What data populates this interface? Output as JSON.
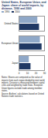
{
  "chart_data": {
    "type": "bar",
    "orientation": "horizontal",
    "title": "United States, European Union, and Japan: share of world imports, by distance, 1990 and 2000",
    "categories": [
      "United States",
      "European Union",
      "Japan"
    ],
    "series": [
      {
        "name": "1990",
        "color": "#8fa8c8",
        "values": [
          22,
          25,
          12
        ]
      },
      {
        "name": "2000",
        "color": "#1f3864",
        "values": [
          24,
          27,
          14
        ]
      }
    ],
    "xlim": [
      0,
      30
    ],
    "xticks": [
      0,
      10,
      20,
      30
    ],
    "grid": false,
    "legend": "top",
    "notes": "Notes: Shares are computed as the value of imports from each region divided by total world imports. Distance is measured between capital cities and weighted by trade flows. European Union figures exclude trade among member states.",
    "source": "Source: Authors' calculations based on United Nations trade statistics."
  }
}
